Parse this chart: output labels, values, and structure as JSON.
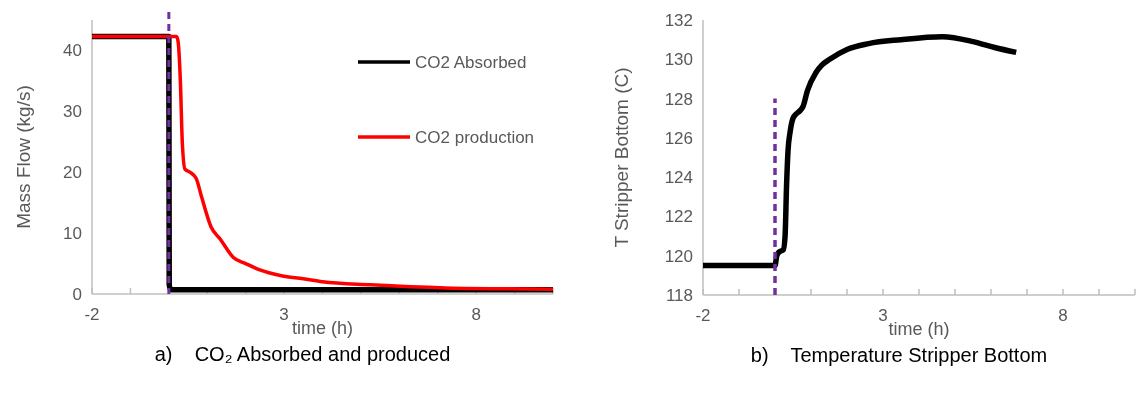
{
  "chart_data": [
    {
      "type": "line",
      "title": "a)    CO₂ Absorbed and produced",
      "xlabel": "time (h)",
      "ylabel": "Mass Flow (kg/s)",
      "xlim": [
        -2,
        10
      ],
      "ylim": [
        0,
        45
      ],
      "xticks": [
        -2,
        {
          "value": -1,
          "label": null
        },
        {
          "value": 0,
          "label": null
        },
        {
          "value": 1,
          "label": null
        },
        {
          "value": 2,
          "label": null
        },
        3,
        {
          "value": 4,
          "label": null
        },
        {
          "value": 5,
          "label": null
        },
        {
          "value": 6,
          "label": null
        },
        {
          "value": 7,
          "label": null
        },
        8,
        {
          "value": 9,
          "label": null
        },
        {
          "value": 10,
          "label": null
        }
      ],
      "yticks": [
        0,
        10,
        20,
        30,
        40
      ],
      "grid": false,
      "legend": "right",
      "line_style": "solid",
      "series": [
        {
          "name": "CO2 Absorbed",
          "color": "#000000",
          "x": [
            -2,
            0,
            0.01,
            0.05,
            0.15,
            1,
            3,
            6,
            10
          ],
          "values": [
            42.3,
            42.3,
            1.5,
            0.7,
            0.7,
            0.7,
            0.7,
            0.7,
            0.7
          ]
        },
        {
          "name": "CO2 production",
          "color": "#ff0000",
          "x": [
            -2,
            0,
            0.2,
            0.24,
            0.3,
            0.35,
            0.42,
            0.55,
            0.71,
            0.85,
            1.1,
            1.34,
            1.68,
            2.0,
            2.35,
            2.93,
            3.5,
            4,
            5.25,
            7.2,
            10
          ],
          "values": [
            42.3,
            42.3,
            42.3,
            41.5,
            35,
            25,
            20.5,
            20,
            19,
            16,
            11,
            9,
            6,
            5,
            4,
            3,
            2.5,
            2,
            1.5,
            1,
            0.8
          ]
        }
      ],
      "ref_lines": [
        {
          "axis": "x",
          "value": 0,
          "color": "#7030a0",
          "line_style": "dashed"
        }
      ]
    },
    {
      "type": "line",
      "title": "b)    Temperature Stripper Bottom",
      "xlabel": "time (h)",
      "ylabel": "T Stripper Bottom (C)",
      "xlim": [
        -2,
        10
      ],
      "ylim": [
        118,
        132
      ],
      "xticks": [
        -2,
        {
          "value": -1,
          "label": null
        },
        {
          "value": 0,
          "label": null
        },
        {
          "value": 1,
          "label": null
        },
        {
          "value": 2,
          "label": null
        },
        3,
        {
          "value": 4,
          "label": null
        },
        {
          "value": 5,
          "label": null
        },
        {
          "value": 6,
          "label": null
        },
        {
          "value": 7,
          "label": null
        },
        8,
        {
          "value": 9,
          "label": null
        },
        {
          "value": 10,
          "label": null
        }
      ],
      "yticks": [
        118,
        120,
        122,
        124,
        126,
        128,
        130,
        132
      ],
      "grid": false,
      "legend": false,
      "line_style": "solid",
      "series": [
        {
          "color": "#000000",
          "x": [
            -2,
            0,
            0.05,
            0.12,
            0.23,
            0.28,
            0.32,
            0.36,
            0.42,
            0.5,
            0.58,
            0.7,
            0.78,
            0.9,
            1.13,
            1.3,
            1.52,
            2.0,
            2.6,
            3.5,
            4.65,
            5.5,
            6.1,
            6.7
          ],
          "values": [
            119.5,
            119.5,
            120,
            120.2,
            120.3,
            121,
            123.5,
            125.3,
            126.3,
            127,
            127.2,
            127.4,
            127.6,
            128.4,
            129.3,
            129.7,
            130,
            130.5,
            130.8,
            131,
            131.15,
            130.9,
            130.6,
            130.35
          ]
        },
        {
          "color": "#7030a0",
          "line_style": "dashed",
          "x": [
            0,
            0
          ],
          "values": [
            118,
            128
          ]
        }
      ]
    }
  ]
}
